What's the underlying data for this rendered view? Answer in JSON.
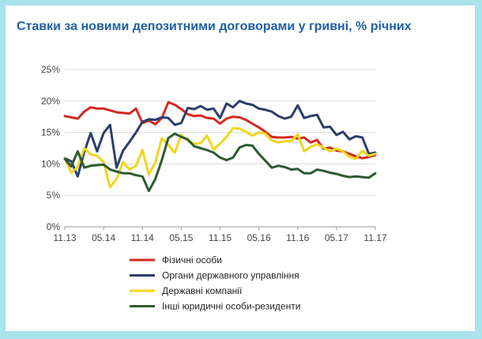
{
  "page": {
    "title": "Ставки за новими депозитними договорами у гривні, % річних"
  },
  "chart_data": {
    "type": "line",
    "title": "Ставки за новими депозитними договорами у гривні, % річних",
    "xlabel": "",
    "ylabel": "",
    "ylim": [
      0,
      25
    ],
    "yticks": [
      0,
      5,
      10,
      15,
      20,
      25
    ],
    "ytick_labels": [
      "0%",
      "5%",
      "10%",
      "15%",
      "20%",
      "25%"
    ],
    "x_tick_labels": [
      "11.13",
      "05.14",
      "11.14",
      "05.15",
      "11.15",
      "05.16",
      "11.16",
      "05.17",
      "11.17"
    ],
    "x": [
      "11.13",
      "12.13",
      "01.14",
      "02.14",
      "03.14",
      "04.14",
      "05.14",
      "06.14",
      "07.14",
      "08.14",
      "09.14",
      "10.14",
      "11.14",
      "12.14",
      "01.15",
      "02.15",
      "03.15",
      "04.15",
      "05.15",
      "06.15",
      "07.15",
      "08.15",
      "09.15",
      "10.15",
      "11.15",
      "12.15",
      "01.16",
      "02.16",
      "03.16",
      "04.16",
      "05.16",
      "06.16",
      "07.16",
      "08.16",
      "09.16",
      "10.16",
      "11.16",
      "12.16",
      "01.17",
      "02.17",
      "03.17",
      "04.17",
      "05.17",
      "06.17",
      "07.17",
      "08.17",
      "09.17",
      "10.17",
      "11.17"
    ],
    "grid": true,
    "legend_position": "bottom",
    "series": [
      {
        "name": "Фізичні особи",
        "color": "#d42a20",
        "values": [
          17.6,
          17.4,
          17.2,
          18.3,
          19.0,
          18.8,
          18.8,
          18.5,
          18.2,
          18.1,
          18.0,
          18.8,
          16.5,
          16.9,
          16.3,
          17.3,
          19.8,
          19.4,
          18.7,
          17.9,
          17.6,
          17.7,
          17.3,
          17.2,
          16.4,
          17.2,
          17.5,
          17.4,
          17.0,
          16.4,
          15.8,
          15.1,
          14.3,
          14.2,
          14.2,
          14.3,
          14.0,
          14.2,
          13.4,
          13.8,
          12.4,
          12.6,
          12.1,
          12.0,
          11.6,
          11.2,
          10.9,
          11.1,
          11.4
        ]
      },
      {
        "name": "Органи державного управління",
        "color": "#2b3e6c",
        "values": [
          10.9,
          10.4,
          8.0,
          11.9,
          14.9,
          12.0,
          14.9,
          16.2,
          9.4,
          12.1,
          13.5,
          15.0,
          16.7,
          17.1,
          17.0,
          17.4,
          17.3,
          16.2,
          16.5,
          18.9,
          18.7,
          19.2,
          18.6,
          18.8,
          17.3,
          19.6,
          19.0,
          20.0,
          19.6,
          19.4,
          18.8,
          18.6,
          18.3,
          17.6,
          17.2,
          17.5,
          19.3,
          17.3,
          17.6,
          17.8,
          15.8,
          15.9,
          14.6,
          15.1,
          13.9,
          14.4,
          14.2,
          11.6,
          11.8
        ]
      },
      {
        "name": "Державні компанії",
        "color": "#f1d51e",
        "values": [
          10.9,
          8.6,
          9.5,
          12.5,
          11.5,
          11.3,
          10.3,
          6.3,
          7.6,
          10.3,
          9.1,
          9.7,
          12.2,
          8.3,
          10.2,
          14.1,
          13.0,
          11.8,
          14.6,
          13.6,
          13.2,
          13.3,
          14.5,
          12.3,
          13.2,
          14.3,
          15.7,
          15.6,
          15.1,
          14.5,
          15.0,
          14.8,
          13.7,
          13.4,
          13.6,
          13.6,
          14.7,
          12.0,
          12.7,
          13.1,
          12.6,
          12.0,
          12.4,
          12.0,
          11.1,
          10.8,
          12.1,
          11.3,
          11.6
        ]
      },
      {
        "name": "Інші юридичні особи-резиденти",
        "color": "#2e5a31",
        "values": [
          10.8,
          9.6,
          12.0,
          9.4,
          9.7,
          9.8,
          9.9,
          9.1,
          8.8,
          8.5,
          8.5,
          8.2,
          8.0,
          5.7,
          7.6,
          10.6,
          14.1,
          14.8,
          14.3,
          13.9,
          12.8,
          12.5,
          12.2,
          11.8,
          11.0,
          10.6,
          11.0,
          12.6,
          13.0,
          12.9,
          11.6,
          10.5,
          9.4,
          9.7,
          9.5,
          9.1,
          9.2,
          8.5,
          8.5,
          9.1,
          8.9,
          8.6,
          8.4,
          8.1,
          7.9,
          8.0,
          7.9,
          7.8,
          8.5
        ]
      }
    ]
  }
}
